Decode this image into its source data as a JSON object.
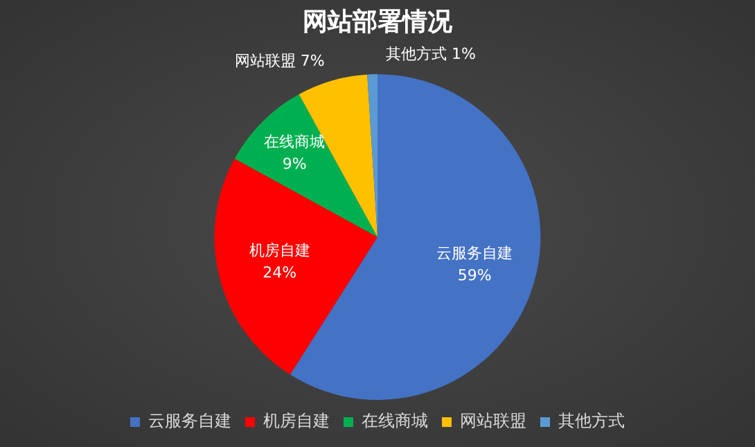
{
  "chart_data": {
    "type": "pie",
    "title": "网站部署情况",
    "categories": [
      "云服务自建",
      "机房自建",
      "在线商城",
      "网站联盟",
      "其他方式"
    ],
    "values": [
      59,
      24,
      9,
      7,
      1
    ],
    "value_labels": [
      "59%",
      "24%",
      "9%",
      "7%",
      "1%"
    ],
    "colors": [
      "#4472c4",
      "#ff0000",
      "#00b050",
      "#ffc000",
      "#5b9bd5"
    ],
    "legend": "bottom"
  }
}
